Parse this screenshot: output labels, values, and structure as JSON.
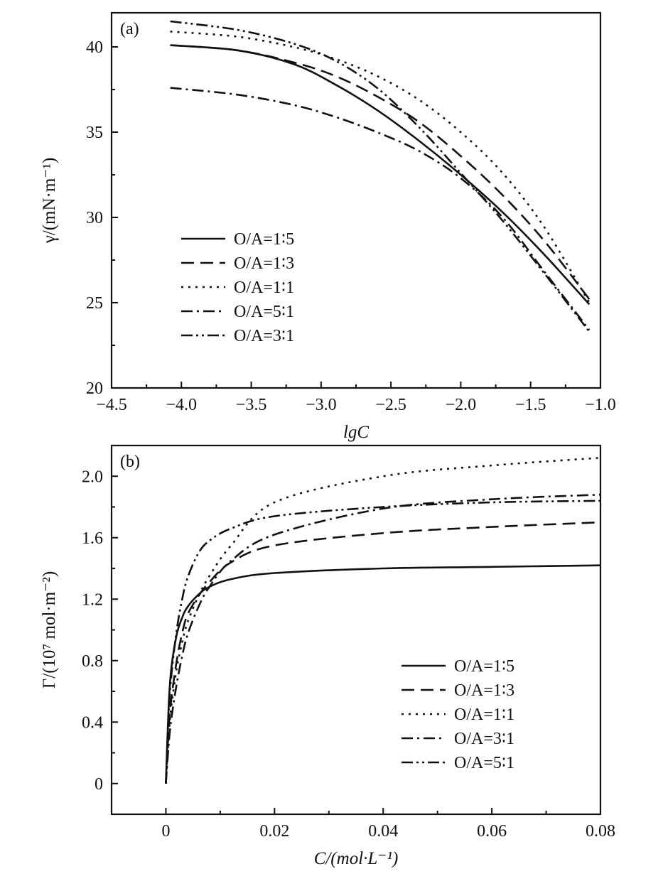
{
  "chart_data": [
    {
      "type": "line",
      "panel_label": "(a)",
      "xlabel": "lgC",
      "ylabel": "γ/(mN·m⁻¹)",
      "xlim": [
        -4.5,
        -1.0
      ],
      "ylim": [
        20,
        42
      ],
      "xticks": [
        -4.5,
        -4.0,
        -3.5,
        -3.0,
        -2.5,
        -2.0,
        -1.5,
        -1.0
      ],
      "xtick_labels": [
        "−4.5",
        "−4.0",
        "−3.5",
        "−3.0",
        "−2.5",
        "−2.0",
        "−1.5",
        "−1.0"
      ],
      "yticks": [
        20,
        25,
        30,
        35,
        40
      ],
      "ytick_labels": [
        "20",
        "25",
        "30",
        "35",
        "40"
      ],
      "legend_position": "bottom-left",
      "grid": false,
      "series": [
        {
          "name": "O/A=1∶5",
          "dash": "solid",
          "x": [
            -4.08,
            -3.6,
            -3.2,
            -2.9,
            -2.6,
            -2.3,
            -2.0,
            -1.7,
            -1.4,
            -1.08
          ],
          "y": [
            40.1,
            39.8,
            39.0,
            37.8,
            36.3,
            34.5,
            32.5,
            30.3,
            27.8,
            24.9
          ]
        },
        {
          "name": "O/A=1∶3",
          "dash": "dash",
          "x": [
            -4.08,
            -3.6,
            -3.2,
            -2.9,
            -2.6,
            -2.3,
            -2.0,
            -1.7,
            -1.4,
            -1.08
          ],
          "y": [
            40.1,
            39.8,
            39.1,
            38.3,
            37.1,
            35.6,
            33.6,
            31.3,
            28.6,
            25.2
          ]
        },
        {
          "name": "O/A=1∶1",
          "dash": "dot",
          "x": [
            -4.08,
            -3.6,
            -3.2,
            -2.9,
            -2.6,
            -2.3,
            -2.0,
            -1.7,
            -1.4,
            -1.08
          ],
          "y": [
            40.9,
            40.6,
            40.0,
            39.3,
            38.3,
            36.9,
            35.0,
            32.6,
            29.4,
            25.0
          ]
        },
        {
          "name": "O/A=5∶1",
          "dash": "dashdot",
          "x": [
            -4.08,
            -3.6,
            -3.2,
            -2.9,
            -2.6,
            -2.3,
            -2.0,
            -1.7,
            -1.4,
            -1.08
          ],
          "y": [
            37.6,
            37.2,
            36.6,
            35.9,
            35.0,
            33.9,
            32.3,
            30.0,
            26.8,
            23.4
          ]
        },
        {
          "name": "O/A=3∶1",
          "dash": "dashdotdot",
          "x": [
            -4.08,
            -3.6,
            -3.2,
            -2.9,
            -2.6,
            -2.3,
            -2.0,
            -1.7,
            -1.4,
            -1.08
          ],
          "y": [
            41.5,
            41.0,
            40.2,
            39.2,
            37.6,
            35.3,
            32.6,
            29.8,
            26.7,
            23.3
          ]
        }
      ]
    },
    {
      "type": "line",
      "panel_label": "(b)",
      "xlabel": "C/(mol·L⁻¹)",
      "ylabel": "Γ/(10⁷ mol·m⁻²)",
      "xlim": [
        -0.01,
        0.08
      ],
      "ylim": [
        -0.2,
        2.2
      ],
      "xticks": [
        0,
        0.02,
        0.04,
        0.06,
        0.08
      ],
      "xtick_labels": [
        "0",
        "0.02",
        "0.04",
        "0.06",
        "0.08"
      ],
      "yticks": [
        0,
        0.4,
        0.8,
        1.2,
        1.6,
        2.0
      ],
      "ytick_labels": [
        "0",
        "0.4",
        "0.8",
        "1.2",
        "1.6",
        "2.0"
      ],
      "legend_position": "bottom-right",
      "grid": false,
      "series": [
        {
          "name": "O/A=1∶5",
          "dash": "solid",
          "x": [
            0,
            0.0005,
            0.001,
            0.002,
            0.003,
            0.004,
            0.006,
            0.008,
            0.012,
            0.02,
            0.04,
            0.06,
            0.08
          ],
          "y": [
            0,
            0.5,
            0.75,
            0.97,
            1.08,
            1.15,
            1.23,
            1.28,
            1.33,
            1.37,
            1.4,
            1.41,
            1.42
          ]
        },
        {
          "name": "O/A=1∶3",
          "dash": "dash",
          "x": [
            0,
            0.0005,
            0.001,
            0.002,
            0.003,
            0.004,
            0.006,
            0.008,
            0.012,
            0.02,
            0.04,
            0.06,
            0.08
          ],
          "y": [
            0,
            0.35,
            0.55,
            0.8,
            0.98,
            1.1,
            1.22,
            1.31,
            1.44,
            1.55,
            1.63,
            1.67,
            1.7
          ]
        },
        {
          "name": "O/A=1∶1",
          "dash": "dot",
          "x": [
            0,
            0.0005,
            0.001,
            0.002,
            0.003,
            0.004,
            0.006,
            0.008,
            0.012,
            0.02,
            0.04,
            0.06,
            0.08
          ],
          "y": [
            0,
            0.3,
            0.5,
            0.75,
            0.92,
            1.05,
            1.22,
            1.35,
            1.55,
            1.83,
            2.0,
            2.07,
            2.12
          ]
        },
        {
          "name": "O/A=3∶1",
          "dash": "dashdot",
          "x": [
            0,
            0.0005,
            0.001,
            0.002,
            0.003,
            0.004,
            0.006,
            0.008,
            0.012,
            0.02,
            0.04,
            0.06,
            0.08
          ],
          "y": [
            0,
            0.25,
            0.42,
            0.65,
            0.83,
            0.97,
            1.15,
            1.28,
            1.45,
            1.62,
            1.79,
            1.85,
            1.88
          ]
        },
        {
          "name": "O/A=5∶1",
          "dash": "dashdotdot",
          "x": [
            0,
            0.0005,
            0.001,
            0.002,
            0.003,
            0.004,
            0.006,
            0.008,
            0.012,
            0.02,
            0.04,
            0.06,
            0.08
          ],
          "y": [
            0,
            0.45,
            0.7,
            1.0,
            1.2,
            1.34,
            1.5,
            1.58,
            1.66,
            1.74,
            1.8,
            1.83,
            1.84
          ]
        }
      ]
    }
  ]
}
